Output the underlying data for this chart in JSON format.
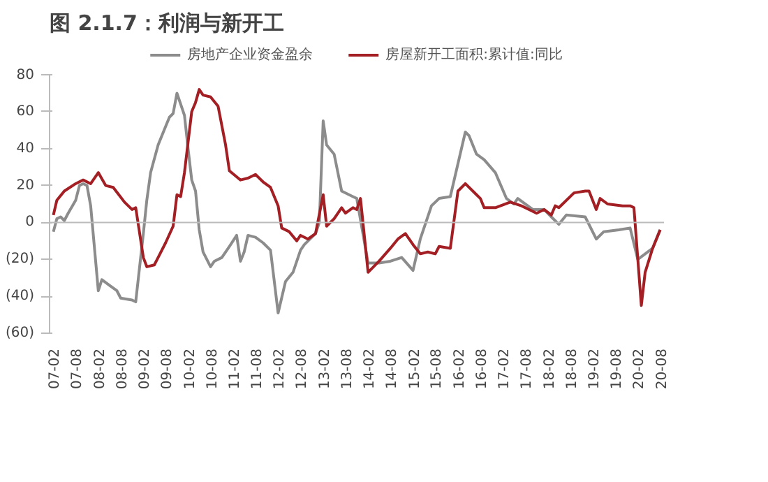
{
  "chart_data": {
    "type": "line",
    "title": "图 2.1.7：利润与新开工",
    "xlim": [
      "2007-01",
      "2020-09"
    ],
    "ylim": [
      -60,
      80
    ],
    "xticks": [
      {
        "value": "2007-02",
        "label": "07-02"
      },
      {
        "value": "2007-08",
        "label": "07-08"
      },
      {
        "value": "2008-02",
        "label": "08-02"
      },
      {
        "value": "2008-08",
        "label": "08-08"
      },
      {
        "value": "2009-02",
        "label": "09-02"
      },
      {
        "value": "2009-08",
        "label": "09-08"
      },
      {
        "value": "2010-02",
        "label": "10-02"
      },
      {
        "value": "2010-08",
        "label": "10-08"
      },
      {
        "value": "2011-02",
        "label": "11-02"
      },
      {
        "value": "2011-08",
        "label": "11-08"
      },
      {
        "value": "2012-02",
        "label": "12-02"
      },
      {
        "value": "2012-08",
        "label": "12-08"
      },
      {
        "value": "2013-02",
        "label": "13-02"
      },
      {
        "value": "2013-08",
        "label": "13-08"
      },
      {
        "value": "2014-02",
        "label": "14-02"
      },
      {
        "value": "2014-08",
        "label": "14-08"
      },
      {
        "value": "2015-02",
        "label": "15-02"
      },
      {
        "value": "2015-08",
        "label": "15-08"
      },
      {
        "value": "2016-02",
        "label": "16-02"
      },
      {
        "value": "2016-08",
        "label": "16-08"
      },
      {
        "value": "2017-02",
        "label": "17-02"
      },
      {
        "value": "2017-08",
        "label": "17-08"
      },
      {
        "value": "2018-02",
        "label": "18-02"
      },
      {
        "value": "2018-08",
        "label": "18-08"
      },
      {
        "value": "2019-02",
        "label": "19-02"
      },
      {
        "value": "2019-08",
        "label": "19-08"
      },
      {
        "value": "2020-02",
        "label": "20-02"
      },
      {
        "value": "2020-08",
        "label": "20-08"
      }
    ],
    "yticks": [
      80,
      60,
      40,
      20,
      0,
      {
        "value": -20,
        "label": "(20)"
      },
      {
        "value": -40,
        "label": "(40)"
      },
      {
        "value": -60,
        "label": "(60)"
      }
    ],
    "legend": "top",
    "series": [
      {
        "name": "房地产企业资金盈余",
        "color": "#8c8c8c",
        "x": [
          "2007-02",
          "2007-03",
          "2007-04",
          "2007-05",
          "2007-06",
          "2007-08",
          "2007-09",
          "2007-10",
          "2007-11",
          "2007-12",
          "2008-02",
          "2008-03",
          "2008-05",
          "2008-07",
          "2008-08",
          "2008-11",
          "2008-12",
          "2009-02",
          "2009-03",
          "2009-04",
          "2009-06",
          "2009-08",
          "2009-09",
          "2009-10",
          "2009-11",
          "2010-01",
          "2010-02",
          "2010-03",
          "2010-04",
          "2010-05",
          "2010-06",
          "2010-08",
          "2010-09",
          "2010-11",
          "2011-01",
          "2011-03",
          "2011-04",
          "2011-05",
          "2011-06",
          "2011-08",
          "2011-10",
          "2011-12",
          "2012-02",
          "2012-04",
          "2012-06",
          "2012-08",
          "2012-09",
          "2012-12",
          "2013-01",
          "2013-02",
          "2013-03",
          "2013-05",
          "2013-07",
          "2013-10",
          "2013-11",
          "2014-02",
          "2014-05",
          "2014-08",
          "2014-11",
          "2015-02",
          "2015-04",
          "2015-07",
          "2015-09",
          "2015-12",
          "2016-04",
          "2016-05",
          "2016-07",
          "2016-09",
          "2016-12",
          "2017-03",
          "2017-05",
          "2017-06",
          "2017-10",
          "2018-01",
          "2018-03",
          "2018-05",
          "2018-07",
          "2018-12",
          "2019-03",
          "2019-05",
          "2019-09",
          "2019-12",
          "2020-02",
          "2020-06",
          "2020-08"
        ],
        "values": [
          -5,
          2,
          3,
          1,
          5,
          12,
          20,
          21,
          20,
          9,
          -37,
          -31,
          -34,
          -37,
          -41,
          -42,
          -43,
          -6,
          12,
          27,
          42,
          52,
          57,
          59,
          70,
          58,
          39,
          23,
          17,
          -4,
          -16,
          -24,
          -21,
          -19,
          -13,
          -7,
          -21,
          -16,
          -7,
          -8,
          -11,
          -15,
          -49,
          -32,
          -27,
          -15,
          -12,
          -6,
          0,
          55,
          42,
          37,
          17,
          14,
          13,
          -22,
          -22,
          -21,
          -19,
          -26,
          -9,
          9,
          13,
          14,
          49,
          47,
          37,
          34,
          27,
          13,
          10,
          13,
          7,
          7,
          3,
          -1,
          4,
          3,
          -9,
          -5,
          -4,
          -3,
          -20,
          -14,
          -4
        ]
      },
      {
        "name": "房屋新开工面积:累计值:同比",
        "color": "#a31f24",
        "x": [
          "2007-02",
          "2007-03",
          "2007-05",
          "2007-08",
          "2007-10",
          "2007-12",
          "2008-02",
          "2008-04",
          "2008-06",
          "2008-09",
          "2008-11",
          "2008-12",
          "2009-02",
          "2009-03",
          "2009-05",
          "2009-06",
          "2009-08",
          "2009-10",
          "2009-11",
          "2009-12",
          "2010-01",
          "2010-03",
          "2010-04",
          "2010-05",
          "2010-06",
          "2010-08",
          "2010-10",
          "2010-12",
          "2011-01",
          "2011-04",
          "2011-06",
          "2011-08",
          "2011-10",
          "2011-12",
          "2012-02",
          "2012-03",
          "2012-05",
          "2012-07",
          "2012-08",
          "2012-10",
          "2012-12",
          "2013-02",
          "2013-03",
          "2013-05",
          "2013-07",
          "2013-08",
          "2013-10",
          "2013-11",
          "2013-12",
          "2014-02",
          "2014-05",
          "2014-08",
          "2014-10",
          "2014-12",
          "2015-02",
          "2015-04",
          "2015-06",
          "2015-08",
          "2015-09",
          "2015-12",
          "2016-02",
          "2016-04",
          "2016-07",
          "2016-08",
          "2016-09",
          "2016-12",
          "2017-04",
          "2017-07",
          "2017-09",
          "2017-11",
          "2018-01",
          "2018-03",
          "2018-04",
          "2018-05",
          "2018-09",
          "2018-12",
          "2019-01",
          "2019-03",
          "2019-04",
          "2019-06",
          "2019-10",
          "2019-12",
          "2020-01",
          "2020-03",
          "2020-04",
          "2020-06",
          "2020-08"
        ],
        "values": [
          4,
          12,
          17,
          21,
          23,
          21,
          27,
          20,
          19,
          11,
          7,
          8,
          -19,
          -24,
          -23,
          -19,
          -11,
          -2,
          15,
          14,
          27,
          60,
          65,
          72,
          69,
          68,
          63,
          42,
          28,
          23,
          24,
          26,
          22,
          19,
          9,
          -3,
          -5,
          -10,
          -7,
          -9,
          -6,
          15,
          -2,
          2,
          8,
          5,
          8,
          7,
          13,
          -27,
          -21,
          -14,
          -9,
          -6,
          -12,
          -17,
          -16,
          -17,
          -13,
          -14,
          17,
          21,
          15,
          13,
          8,
          8,
          11,
          9,
          7,
          5,
          7,
          4,
          9,
          8,
          16,
          17,
          17,
          7,
          13,
          10,
          9,
          9,
          8,
          -45,
          -27,
          -14,
          -4
        ]
      }
    ]
  }
}
